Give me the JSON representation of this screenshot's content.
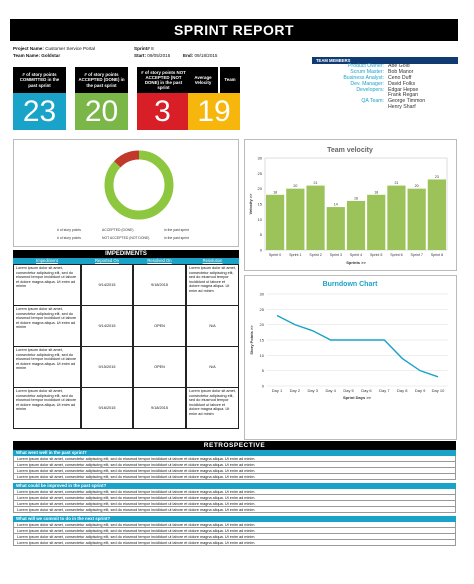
{
  "report": {
    "title": "SPRINT REPORT",
    "project_label": "Project Name:",
    "project_value": "Customer Service Portal",
    "team_label": "Team Name:",
    "team_value": "Goldstar",
    "sprint_label": "Sprint#",
    "sprint_value": "8",
    "start_label": "Start:",
    "start_value": "09/05/2015",
    "end_label": "End:",
    "end_value": "09/18/2015"
  },
  "kpis": [
    {
      "label": "# of story points COMMITTED in the past sprint",
      "value": "23",
      "color": "#1aa3c8"
    },
    {
      "label": "# of story points ACCEPTED (DONE) in the past sprint",
      "value": "20",
      "color": "#7ab648"
    },
    {
      "label": "# of story points NOT ACCEPTED (NOT DONE) in the past sprint",
      "value": "3",
      "color": "#d81e26"
    },
    {
      "label": "Average Velocity",
      "value": "19",
      "color": "#f6b60c"
    }
  ],
  "kpi_extra_label": "Team",
  "team": {
    "title": "TEAM MEMBERS",
    "members": [
      {
        "role": "Product Owner:",
        "name": "Abe Gold"
      },
      {
        "role": "Scrum Master:",
        "name": "Bob Manor"
      },
      {
        "role": "Business Analyst:",
        "name": "Ceno Duff"
      },
      {
        "role": "Dev. Manager:",
        "name": "David Folks"
      },
      {
        "role": "Developers:",
        "name": "Edgar Hepse"
      },
      {
        "role": "",
        "name": "Frank Regan"
      },
      {
        "role": "QA Team:",
        "name": "George Timmon"
      },
      {
        "role": "",
        "name": "Henry Sharf"
      }
    ]
  },
  "donut": {
    "accepted": 20,
    "not_accepted": 3,
    "legend": [
      "# of story points",
      "ACCEPTED (DONE)",
      "in the past sprint",
      "# of story points",
      "NOT ACCEPTED (NOT DONE)",
      "in the past sprint"
    ],
    "colors": {
      "accepted": "#8dc63f",
      "not_accepted": "#c0392b"
    }
  },
  "chart_data": [
    {
      "type": "bar",
      "title": "Team velocity",
      "xlabel": "Sprints >>",
      "ylabel": "Velocity >>",
      "categories": [
        "Sprint 0",
        "Sprint 1",
        "Sprint 2",
        "Sprint 3",
        "Sprint 4",
        "Sprint 5",
        "Sprint 6",
        "Sprint 7",
        "Sprint 8"
      ],
      "values": [
        18,
        20,
        21,
        14,
        16,
        18,
        21,
        20,
        23
      ],
      "ylim": [
        0,
        30
      ],
      "yticks": [
        0,
        5,
        10,
        15,
        20,
        25,
        30
      ],
      "color": "#9bc35a",
      "grid": false
    },
    {
      "type": "line",
      "title": "Burndown Chart",
      "xlabel": "Sprint Days >>",
      "ylabel": "Story Points >>",
      "categories": [
        "Day 1",
        "Day 2",
        "Day 3",
        "Day 4",
        "Day 5",
        "Day 6",
        "Day 7",
        "Day 8",
        "Day 9",
        "Day 10"
      ],
      "values": [
        23,
        20,
        18,
        15,
        15,
        15,
        15,
        9,
        5,
        3
      ],
      "ylim": [
        0,
        30
      ],
      "yticks": [
        0,
        5,
        10,
        15,
        20,
        25,
        30
      ],
      "color": "#1aa3c8",
      "grid": true
    }
  ],
  "impediments": {
    "title": "IMPEDIMENTS",
    "headers": [
      "Impediment",
      "Reported On",
      "Resolved On",
      "Resolution"
    ],
    "rows": [
      {
        "impediment": "Lorem ipsum dolor sit amet, consectetur adipiscing elit, sed do eiusmod tempor incididunt ut labore et dolore magna aliqua. Ut enim ad minim",
        "reported": "9/14/2015",
        "resolved": "9/18/2015",
        "resolution": "Lorem ipsum dolor sit amet, consectetur adipiscing elit, sed do eiusmod tempor incididunt ut labore et dolore magna aliqua. Ut enim ad minim"
      },
      {
        "impediment": "Lorem ipsum dolor sit amet, consectetur adipiscing elit, sed do eiusmod tempor incididunt ut labore et dolore magna aliqua. Ut enim ad minim",
        "reported": "9/14/2015",
        "resolved": "OPEN",
        "resolution": "N/A"
      },
      {
        "impediment": "Lorem ipsum dolor sit amet, consectetur adipiscing elit, sed do eiusmod tempor incididunt ut labore et dolore magna aliqua. Ut enim ad minim",
        "reported": "9/15/2015",
        "resolved": "OPEN",
        "resolution": "N/A"
      },
      {
        "impediment": "Lorem ipsum dolor sit amet, consectetur adipiscing elit, sed do eiusmod tempor incididunt ut labore et dolore magna aliqua. Ut enim ad minim",
        "reported": "9/16/2015",
        "resolved": "9/18/2015",
        "resolution": "Lorem ipsum dolor sit amet, consectetur adipiscing elit, sed do eiusmod tempor incididunt ut labore et dolore magna aliqua. Ut enim ad minim"
      }
    ]
  },
  "retrospective": {
    "title": "RETROSPECTIVE",
    "sections": [
      {
        "question": "What went well in the past sprint?",
        "lines": [
          "Lorem ipsum dolor sit amet, consectetur adipiscing elit, sed do eiusmod tempor incididunt ut labore et dolore magna aliqua. Ut enim ad minim.",
          "Lorem ipsum dolor sit amet, consectetur adipiscing elit, sed do eiusmod tempor incididunt ut labore et dolore magna aliqua. Ut enim ad minim.",
          "Lorem ipsum dolor sit amet, consectetur adipiscing elit, sed do eiusmod tempor incididunt ut labore et dolore magna aliqua. Ut enim ad minim.",
          "Lorem ipsum dolor sit amet, consectetur adipiscing elit, sed do eiusmod tempor incididunt ut labore et dolore magna aliqua. Ut enim ad minim."
        ]
      },
      {
        "question": "What could be improved in the past sprint?",
        "lines": [
          "Lorem ipsum dolor sit amet, consectetur adipiscing elit, sed do eiusmod tempor incididunt ut labore et dolore magna aliqua. Ut enim ad minim.",
          "Lorem ipsum dolor sit amet, consectetur adipiscing elit, sed do eiusmod tempor incididunt ut labore et dolore magna aliqua. Ut enim ad minim.",
          "Lorem ipsum dolor sit amet, consectetur adipiscing elit, sed do eiusmod tempor incididunt ut labore et dolore magna aliqua. Ut enim ad minim.",
          "Lorem ipsum dolor sit amet, consectetur adipiscing elit, sed do eiusmod tempor incididunt ut labore et dolore magna aliqua. Ut enim ad minim."
        ]
      },
      {
        "question": "What will we commit to do in the next sprint?",
        "lines": [
          "Lorem ipsum dolor sit amet, consectetur adipiscing elit, sed do eiusmod tempor incididunt ut labore et dolore magna aliqua. Ut enim ad minim.",
          "Lorem ipsum dolor sit amet, consectetur adipiscing elit, sed do eiusmod tempor incididunt ut labore et dolore magna aliqua. Ut enim ad minim.",
          "Lorem ipsum dolor sit amet, consectetur adipiscing elit, sed do eiusmod tempor incididunt ut labore et dolore magna aliqua. Ut enim ad minim.",
          "Lorem ipsum dolor sit amet, consectetur adipiscing elit, sed do eiusmod tempor incididunt ut labore et dolore magna aliqua. Ut enim ad minim."
        ]
      }
    ]
  }
}
